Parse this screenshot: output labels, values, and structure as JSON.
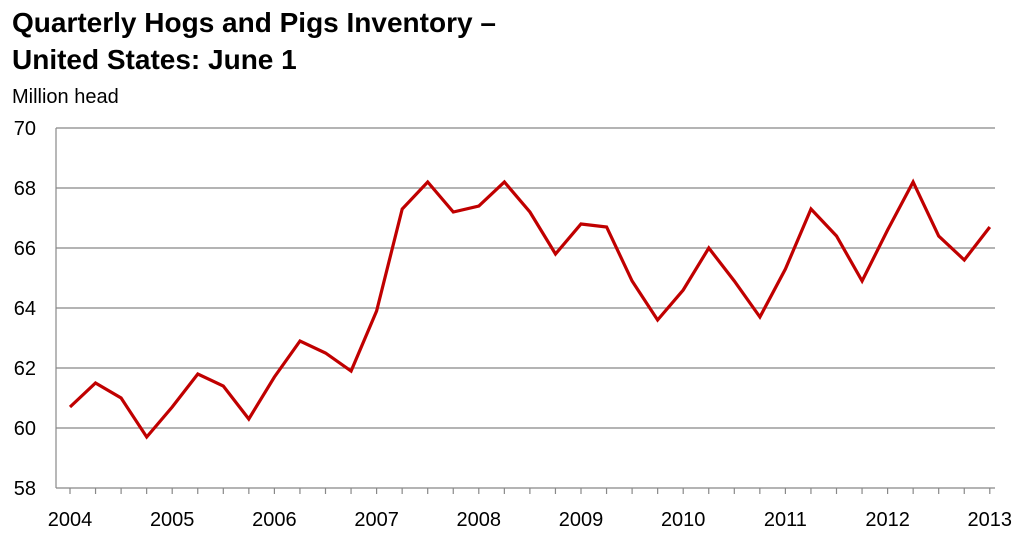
{
  "chart_data": {
    "type": "line",
    "title_lines": [
      "Quarterly Hogs and Pigs Inventory –",
      "United States: June 1"
    ],
    "ylabel": "Million head",
    "xlabel": "",
    "ylim": [
      58,
      70
    ],
    "yticks": [
      58,
      60,
      62,
      64,
      66,
      68,
      70
    ],
    "xtick_labels": [
      "2004",
      "2005",
      "2006",
      "2007",
      "2008",
      "2009",
      "2010",
      "2011",
      "2012",
      "2013"
    ],
    "grid": true,
    "legend": "none",
    "colors": {
      "line": "#c00000",
      "grid": "#888888",
      "axis": "#888888"
    },
    "series": [
      {
        "values": [
          60.7,
          61.5,
          61.0,
          59.7,
          60.7,
          61.8,
          61.4,
          60.3,
          61.7,
          62.9,
          62.5,
          61.9,
          63.9,
          67.3,
          68.2,
          67.2,
          67.4,
          68.2,
          67.2,
          65.8,
          66.8,
          66.7,
          64.9,
          63.6,
          64.6,
          66.0,
          64.9,
          63.7,
          65.3,
          67.3,
          66.4,
          64.9,
          66.6,
          68.2,
          66.4,
          65.6,
          66.7
        ]
      }
    ]
  }
}
